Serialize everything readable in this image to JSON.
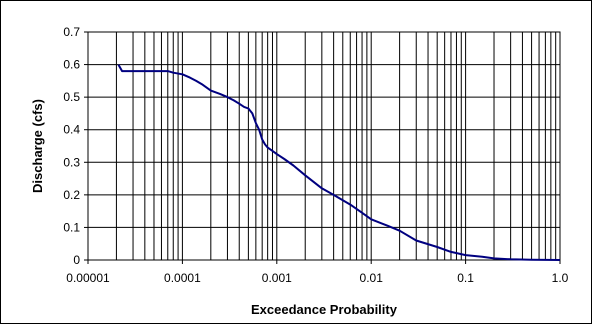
{
  "chart_data": {
    "type": "line",
    "title": "",
    "xlabel": "Exceedance Probability",
    "ylabel": "Discharge (cfs)",
    "xscale": "log",
    "xlim": [
      1e-05,
      1.0
    ],
    "ylim": [
      0,
      0.7
    ],
    "x_tick_labels": [
      "0.00001",
      "0.0001",
      "0.001",
      "0.01",
      "0.1",
      "1.0"
    ],
    "y_tick_labels": [
      "0",
      "0.1",
      "0.2",
      "0.3",
      "0.4",
      "0.5",
      "0.6",
      "0.7"
    ],
    "grid": true,
    "legend": "none",
    "series": [
      {
        "color": "#000080",
        "x": [
          2.1e-05,
          2.3e-05,
          3e-05,
          5e-05,
          7e-05,
          8e-05,
          0.0001,
          0.00012,
          0.00014,
          0.00016,
          0.0002,
          0.00025,
          0.0003,
          0.00035,
          0.0004,
          0.00045,
          0.0005,
          0.00055,
          0.0006,
          0.00065,
          0.0007,
          0.00075,
          0.0008,
          0.0009,
          0.001,
          0.0012,
          0.0015,
          0.002,
          0.003,
          0.004,
          0.006,
          0.008,
          0.01,
          0.015,
          0.02,
          0.03,
          0.05,
          0.07,
          0.1,
          0.15,
          0.2,
          0.3,
          0.5,
          1.0
        ],
        "y": [
          0.6,
          0.58,
          0.58,
          0.58,
          0.58,
          0.575,
          0.57,
          0.56,
          0.55,
          0.54,
          0.52,
          0.51,
          0.5,
          0.49,
          0.48,
          0.47,
          0.465,
          0.45,
          0.42,
          0.4,
          0.37,
          0.355,
          0.345,
          0.335,
          0.325,
          0.31,
          0.29,
          0.26,
          0.22,
          0.2,
          0.17,
          0.145,
          0.125,
          0.105,
          0.09,
          0.06,
          0.04,
          0.025,
          0.015,
          0.01,
          0.005,
          0.002,
          0.001,
          0.0
        ]
      }
    ]
  }
}
